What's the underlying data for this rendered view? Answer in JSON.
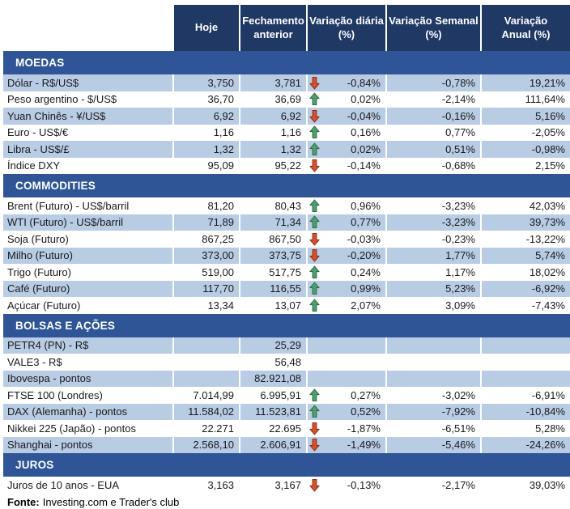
{
  "colors": {
    "header_bg": "#1F3864",
    "band_bg": "#2F5597",
    "row_alt_bg": "#B8CCE4",
    "text": "#1A1A1A",
    "arrow_up": "#4F9E6F",
    "arrow_up_stroke": "#2E6B47",
    "arrow_down": "#D4502E",
    "arrow_down_stroke": "#942D12"
  },
  "table": {
    "columns": [
      "Hoje",
      "Fechamento\nanterior",
      "Variação diária\n(%)",
      "Variação Semanal\n(%)",
      "Variação\nAnual (%)"
    ],
    "sections": [
      {
        "title": "MOEDAS",
        "rows": [
          {
            "label": "Dólar - R$/US$",
            "hoje": "3,750",
            "prev": "3,781",
            "arrow": "down",
            "daily": "-0,84%",
            "weekly": "-0,78%",
            "annual": "19,21%"
          },
          {
            "label": "Peso argentino - $/US$",
            "hoje": "36,70",
            "prev": "36,69",
            "arrow": "up",
            "daily": "0,02%",
            "weekly": "-2,14%",
            "annual": "111,64%"
          },
          {
            "label": "Yuan Chinês - ¥/US$",
            "hoje": "6,92",
            "prev": "6,92",
            "arrow": "down",
            "daily": "-0,04%",
            "weekly": "-0,16%",
            "annual": "5,16%"
          },
          {
            "label": "Euro - US$/€",
            "hoje": "1,16",
            "prev": "1,16",
            "arrow": "up",
            "daily": "0,16%",
            "weekly": "0,77%",
            "annual": "-2,05%"
          },
          {
            "label": "Libra - US$/£",
            "hoje": "1,32",
            "prev": "1,32",
            "arrow": "up",
            "daily": "0,02%",
            "weekly": "0,51%",
            "annual": "-0,98%"
          },
          {
            "label": "Índice DXY",
            "hoje": "95,09",
            "prev": "95,22",
            "arrow": "down",
            "daily": "-0,14%",
            "weekly": "-0,68%",
            "annual": "2,15%"
          }
        ]
      },
      {
        "title": "COMMODITIES",
        "rows": [
          {
            "label": "Brent (Futuro) - US$/barril",
            "hoje": "81,20",
            "prev": "80,43",
            "arrow": "up",
            "daily": "0,96%",
            "weekly": "-3,23%",
            "annual": "42,03%"
          },
          {
            "label": "WTI (Futuro) - US$/barril",
            "hoje": "71,89",
            "prev": "71,34",
            "arrow": "up",
            "daily": "0,77%",
            "weekly": "-3,23%",
            "annual": "39,73%"
          },
          {
            "label": "Soja (Futuro)",
            "hoje": "867,25",
            "prev": "867,50",
            "arrow": "down",
            "daily": "-0,03%",
            "weekly": "-0,23%",
            "annual": "-13,22%"
          },
          {
            "label": "Milho (Futuro)",
            "hoje": "373,00",
            "prev": "373,75",
            "arrow": "down",
            "daily": "-0,20%",
            "weekly": "1,77%",
            "annual": "5,74%"
          },
          {
            "label": "Trigo (Futuro)",
            "hoje": "519,00",
            "prev": "517,75",
            "arrow": "up",
            "daily": "0,24%",
            "weekly": "1,17%",
            "annual": "18,02%"
          },
          {
            "label": "Café (Futuro)",
            "hoje": "117,70",
            "prev": "116,55",
            "arrow": "up",
            "daily": "0,99%",
            "weekly": "5,23%",
            "annual": "-6,92%"
          },
          {
            "label": "Açúcar (Futuro)",
            "hoje": "13,34",
            "prev": "13,07",
            "arrow": "up",
            "daily": "2,07%",
            "weekly": "3,09%",
            "annual": "-7,43%"
          }
        ]
      },
      {
        "title": "BOLSAS E AÇÕES",
        "rows": [
          {
            "label": "PETR4 (PN) - R$",
            "hoje": "",
            "prev": "25,29",
            "daily": "",
            "weekly": "",
            "annual": ""
          },
          {
            "label": "VALE3 - R$",
            "hoje": "",
            "prev": "56,48",
            "daily": "",
            "weekly": "",
            "annual": ""
          },
          {
            "label": "Ibovespa - pontos",
            "hoje": "",
            "prev": "82.921,08",
            "daily": "",
            "weekly": "",
            "annual": ""
          },
          {
            "label": "FTSE 100 (Londres)",
            "hoje": "7.014,99",
            "prev": "6.995,91",
            "arrow": "up",
            "daily": "0,27%",
            "weekly": "-3,02%",
            "annual": "-6,91%"
          },
          {
            "label": "DAX (Alemanha) - pontos",
            "hoje": "11.584,02",
            "prev": "11.523,81",
            "arrow": "up",
            "daily": "0,52%",
            "weekly": "-7,92%",
            "annual": "-10,84%"
          },
          {
            "label": "Nikkei 225 (Japão) - pontos",
            "hoje": "22.271",
            "prev": "22.695",
            "arrow": "down",
            "daily": "-1,87%",
            "weekly": "-6,51%",
            "annual": "5,28%"
          },
          {
            "label": "Shanghai - pontos",
            "hoje": "2.568,10",
            "prev": "2.606,91",
            "arrow": "down",
            "daily": "-1,49%",
            "weekly": "-5,46%",
            "annual": "-24,26%"
          }
        ]
      },
      {
        "title": "JUROS",
        "rows": [
          {
            "label": "Juros de 10 anos - EUA",
            "hoje": "3,163",
            "prev": "3,167",
            "arrow": "down",
            "daily": "-0,13%",
            "weekly": "-2,17%",
            "annual": "39,03%"
          }
        ]
      }
    ],
    "footer": {
      "source_label": "Fonte:",
      "source_text": "Investing.com e Trader's club"
    }
  }
}
